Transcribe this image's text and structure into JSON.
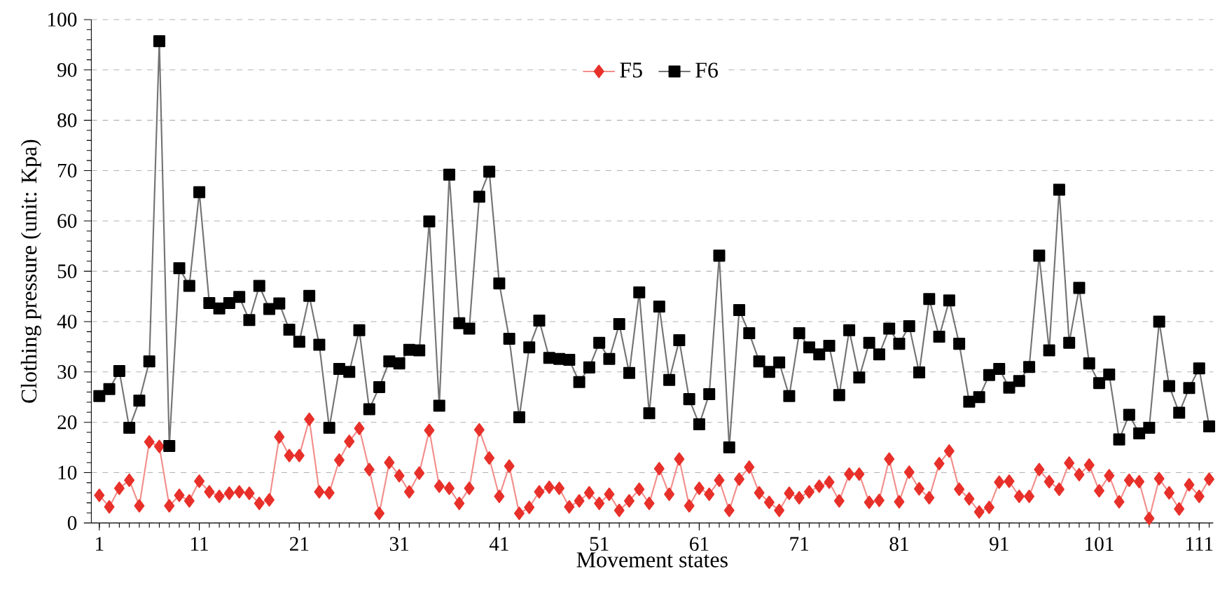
{
  "chart_data": {
    "type": "line",
    "xlabel": "Movement states",
    "ylabel": "Clothing pressure (unit: Kpa)",
    "categories": [
      "1",
      null,
      null,
      null,
      null,
      null,
      null,
      null,
      null,
      null,
      "11",
      null,
      null,
      null,
      null,
      null,
      null,
      null,
      null,
      null,
      "21",
      null,
      null,
      null,
      null,
      null,
      null,
      null,
      null,
      null,
      "31",
      null,
      null,
      null,
      null,
      null,
      null,
      null,
      null,
      null,
      "41",
      null,
      null,
      null,
      null,
      null,
      null,
      null,
      null,
      null,
      "51",
      null,
      null,
      null,
      null,
      null,
      null,
      null,
      null,
      null,
      "61",
      null,
      null,
      null,
      null,
      null,
      null,
      null,
      null,
      null,
      "71",
      null,
      null,
      null,
      null,
      null,
      null,
      null,
      null,
      null,
      "81",
      null,
      null,
      null,
      null,
      null,
      null,
      null,
      null,
      null,
      "91",
      null,
      null,
      null,
      null,
      null,
      null,
      null,
      null,
      null,
      "101",
      null,
      null,
      null,
      null,
      null,
      null,
      null,
      null,
      null,
      "111",
      null
    ],
    "series": [
      {
        "name": "F5",
        "color": "#e8302a",
        "marker": "diamond",
        "values": [
          5.5,
          3.2,
          6.9,
          8.5,
          3.4,
          16.1,
          15.2,
          3.4,
          5.5,
          4.4,
          8.3,
          6.2,
          5.3,
          5.9,
          6.2,
          5.9,
          3.9,
          4.6,
          17.1,
          13.4,
          13.4,
          20.6,
          6.2,
          6.0,
          12.5,
          16.2,
          18.8,
          10.6,
          1.9,
          12.0,
          9.4,
          6.2,
          9.9,
          18.4,
          7.3,
          6.9,
          3.9,
          6.9,
          18.5,
          12.9,
          5.3,
          11.3,
          1.9,
          3.1,
          6.2,
          7.1,
          6.9,
          3.2,
          4.4,
          6.0,
          3.9,
          5.7,
          2.5,
          4.4,
          6.7,
          3.9,
          10.8,
          5.7,
          12.7,
          3.4,
          6.9,
          5.7,
          8.5,
          2.5,
          8.7,
          11.1,
          6.0,
          4.1,
          2.5,
          5.9,
          5.0,
          6.2,
          7.3,
          8.1,
          4.4,
          9.7,
          9.7,
          4.1,
          4.5,
          12.7,
          4.2,
          10.1,
          6.8,
          5.0,
          11.8,
          14.3,
          6.7,
          4.8,
          2.2,
          3.1,
          8.1,
          8.3,
          5.3,
          5.3,
          10.6,
          8.2,
          6.7,
          11.9,
          9.6,
          11.5,
          6.4,
          9.4,
          4.2,
          8.5,
          8.2,
          0.9,
          8.8,
          6.0,
          2.8,
          7.6,
          5.3,
          8.7
        ]
      },
      {
        "name": "F6",
        "color": "#000000",
        "marker": "square",
        "values": [
          25.2,
          26.6,
          30.2,
          18.9,
          24.3,
          32.1,
          95.7,
          15.3,
          50.6,
          47.1,
          65.7,
          43.7,
          42.6,
          43.7,
          44.9,
          40.3,
          47.1,
          42.5,
          43.6,
          38.4,
          36.0,
          45.1,
          35.4,
          18.9,
          30.6,
          30.0,
          38.3,
          22.6,
          27.0,
          32.1,
          31.7,
          34.4,
          34.3,
          59.9,
          23.3,
          69.2,
          39.7,
          38.6,
          64.8,
          69.8,
          47.6,
          36.6,
          21.0,
          34.9,
          40.2,
          32.8,
          32.6,
          32.4,
          28.0,
          30.9,
          35.8,
          32.6,
          39.5,
          29.8,
          45.8,
          21.8,
          43.0,
          28.4,
          36.3,
          24.6,
          19.6,
          25.6,
          53.1,
          15.0,
          42.3,
          37.7,
          32.1,
          30.0,
          31.9,
          25.2,
          37.7,
          34.9,
          33.5,
          35.2,
          25.4,
          38.3,
          28.9,
          35.8,
          33.5,
          38.6,
          35.6,
          39.1,
          29.9,
          44.5,
          37.0,
          44.2,
          35.6,
          24.1,
          25.0,
          29.4,
          30.6,
          26.9,
          28.2,
          31.0,
          53.1,
          34.3,
          66.2,
          35.8,
          46.7,
          31.7,
          27.8,
          29.5,
          16.6,
          21.5,
          17.8,
          18.9,
          40.0,
          27.2,
          21.9,
          26.8,
          30.7,
          19.2
        ]
      }
    ],
    "ylim": [
      0,
      100
    ],
    "yticks": [
      0,
      10,
      20,
      30,
      40,
      50,
      60,
      70,
      80,
      90,
      100
    ],
    "grid": "y",
    "legend": "top",
    "line_style": "solid"
  }
}
